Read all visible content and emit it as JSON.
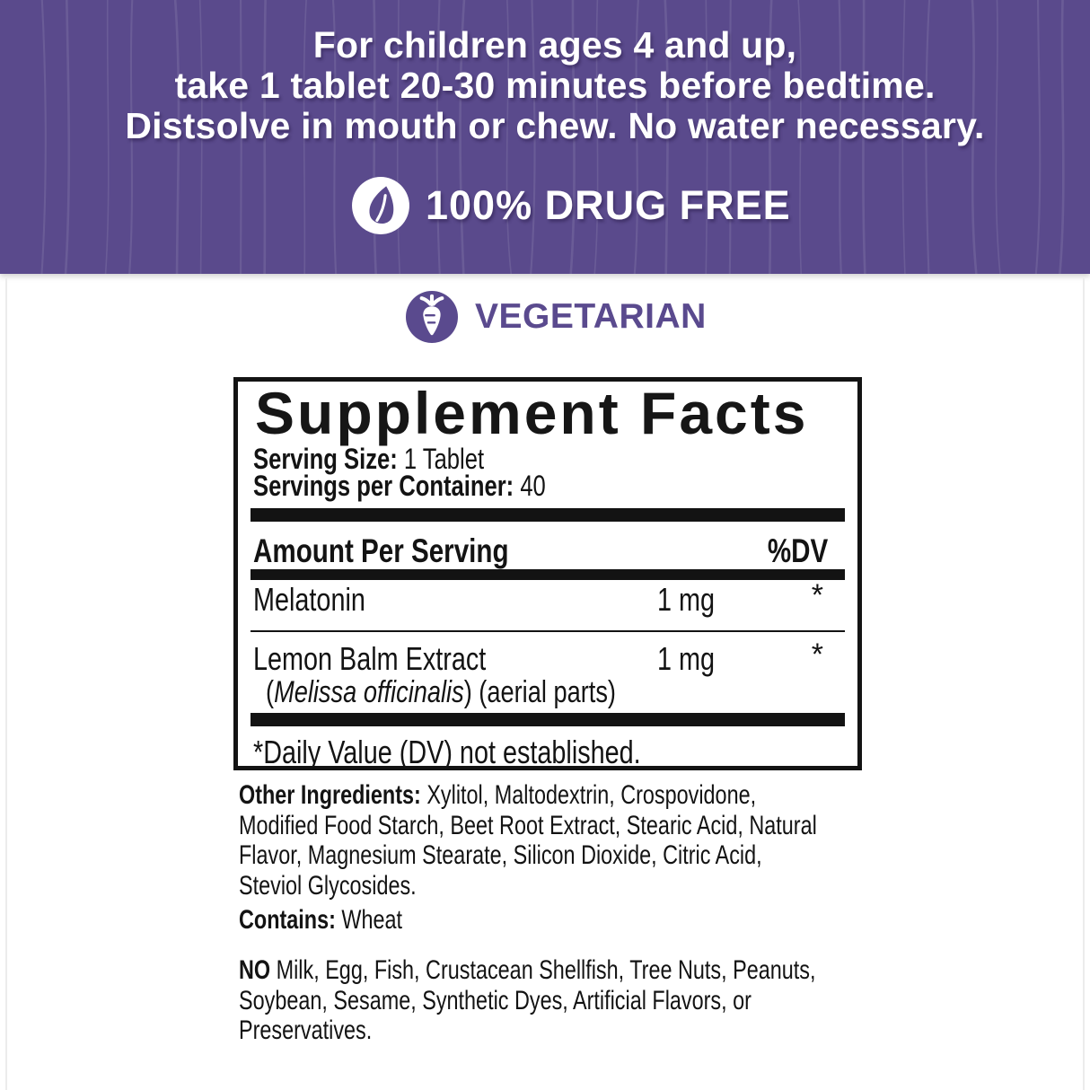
{
  "colors": {
    "banner_purple": "#5a4a8c",
    "brand_purple": "#5a4a8e",
    "text_black": "#131313",
    "white": "#ffffff"
  },
  "banner": {
    "directions": [
      "For children ages 4 and up,",
      "take 1 tablet 20-30 minutes before bedtime.",
      "Distsolve in mouth or chew. No water necessary."
    ],
    "drug_free": {
      "icon": "leaf-icon",
      "label": "100% DRUG FREE"
    }
  },
  "badges": {
    "vegetarian": {
      "icon": "carrot-icon",
      "label": "VEGETARIAN"
    }
  },
  "supplement_facts": {
    "title": "Supplement Facts",
    "serving_size_label": "Serving Size:",
    "serving_size_value": " 1 Tablet",
    "servings_per_container_label": "Servings per Container:",
    "servings_per_container_value": " 40",
    "amount_header": "Amount Per Serving",
    "dv_header": "%DV",
    "rows": [
      {
        "name": "Melatonin",
        "amount": "1 mg",
        "dv": "*"
      },
      {
        "name": "Lemon Balm Extract",
        "amount": "1 mg",
        "dv": "*",
        "species_prefix": "(",
        "species": "Melissa officinalis",
        "species_suffix": ") (aerial parts)"
      }
    ],
    "footnote": "*Daily Value (DV) not established."
  },
  "other_ingredients": {
    "label": "Other Ingredients:",
    "text": " Xylitol, Maltodextrin, Crospovidone,\nModified Food Starch, Beet Root Extract, Stearic Acid, Natural\nFlavor, Magnesium Stearate, Silicon Dioxide, Citric Acid,\nSteviol Glycosides."
  },
  "contains": {
    "label": "Contains:",
    "text": " Wheat"
  },
  "allergens": {
    "label": "NO",
    "text": " Milk, Egg, Fish, Crustacean Shellfish, Tree Nuts, Peanuts,\nSoybean, Sesame, Synthetic Dyes, Artificial Flavors, or\nPreservatives."
  }
}
